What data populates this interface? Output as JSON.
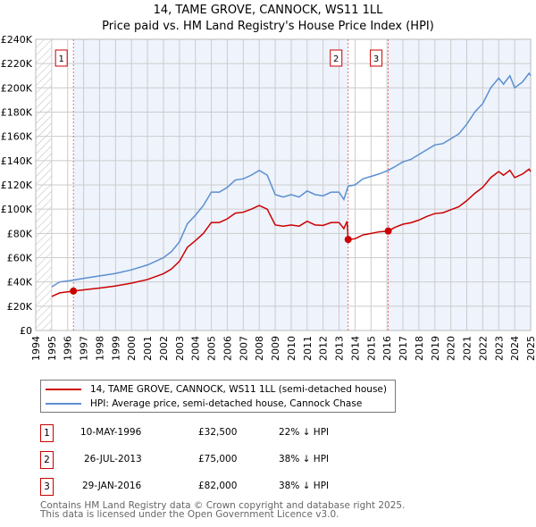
{
  "title": "14, TAME GROVE, CANNOCK, WS11 1LL",
  "subtitle": "Price paid vs. HM Land Registry's House Price Index (HPI)",
  "chart_data": {
    "type": "line",
    "title": "14, TAME GROVE, CANNOCK, WS11 1LL - Price paid vs. HM Land Registry's House Price Index (HPI)",
    "xlim": [
      1994,
      2025
    ],
    "ylim": [
      0,
      240000
    ],
    "x_ticks": [
      "1994",
      "1995",
      "1996",
      "1997",
      "1998",
      "1999",
      "2000",
      "2001",
      "2002",
      "2003",
      "2004",
      "2005",
      "2006",
      "2007",
      "2008",
      "2009",
      "2010",
      "2011",
      "2012",
      "2013",
      "2014",
      "2015",
      "2016",
      "2017",
      "2018",
      "2019",
      "2020",
      "2021",
      "2022",
      "2023",
      "2024",
      "2025"
    ],
    "y_ticks": [
      {
        "v": 0,
        "label": "£0"
      },
      {
        "v": 20000,
        "label": "£20K"
      },
      {
        "v": 40000,
        "label": "£40K"
      },
      {
        "v": 60000,
        "label": "£60K"
      },
      {
        "v": 80000,
        "label": "£80K"
      },
      {
        "v": 100000,
        "label": "£100K"
      },
      {
        "v": 120000,
        "label": "£120K"
      },
      {
        "v": 140000,
        "label": "£140K"
      },
      {
        "v": 160000,
        "label": "£160K"
      },
      {
        "v": 180000,
        "label": "£180K"
      },
      {
        "v": 200000,
        "label": "£200K"
      },
      {
        "v": 220000,
        "label": "£220K"
      },
      {
        "v": 240000,
        "label": "£240K"
      }
    ],
    "grid": true,
    "series": [
      {
        "name": "HPI: Average price, semi-detached house, Cannock Chase",
        "color": "#5b8fd0",
        "x": [
          1995,
          1995.5,
          1996.36,
          1997,
          1998,
          1999,
          2000,
          2001,
          2002,
          2002.5,
          2003,
          2003.5,
          2004,
          2004.5,
          2005,
          2005.5,
          2006,
          2006.5,
          2007,
          2007.5,
          2008,
          2008.5,
          2009,
          2009.5,
          2010,
          2010.5,
          2011,
          2011.5,
          2012,
          2012.5,
          2013,
          2013.3,
          2013.57,
          2014,
          2014.5,
          2015,
          2015.5,
          2016.08,
          2016.5,
          2017,
          2017.5,
          2018,
          2018.5,
          2019,
          2019.5,
          2020,
          2020.5,
          2021,
          2021.5,
          2022,
          2022.5,
          2023,
          2023.3,
          2023.7,
          2024,
          2024.5,
          2024.9,
          2025
        ],
        "y": [
          36000,
          40000,
          41500,
          43000,
          45000,
          47000,
          50000,
          54000,
          60000,
          65000,
          73000,
          88000,
          95000,
          103000,
          114000,
          114000,
          118000,
          124000,
          125000,
          128000,
          132000,
          128000,
          112000,
          110000,
          112000,
          110000,
          115000,
          112000,
          111000,
          114000,
          114000,
          108000,
          119000,
          120000,
          125000,
          127000,
          129000,
          132000,
          135000,
          139000,
          141000,
          145000,
          149000,
          153000,
          154000,
          158000,
          162000,
          170000,
          180000,
          187000,
          200000,
          208000,
          203000,
          210000,
          200000,
          205000,
          212000,
          210000
        ]
      },
      {
        "name": "14, TAME GROVE, CANNOCK, WS11 1LL (semi-detached house)",
        "color": "#cc0000",
        "x": [
          1995,
          1995.5,
          1996.36,
          1997,
          1998,
          1999,
          2000,
          2001,
          2002,
          2002.5,
          2003,
          2003.5,
          2004,
          2004.5,
          2005,
          2005.5,
          2006,
          2006.5,
          2007,
          2007.5,
          2008,
          2008.5,
          2009,
          2009.5,
          2010,
          2010.5,
          2011,
          2011.5,
          2012,
          2012.5,
          2013,
          2013.3,
          2013.5,
          2013.57,
          2014,
          2014.5,
          2015,
          2015.5,
          2016.08,
          2016.5,
          2017,
          2017.5,
          2018,
          2018.5,
          2019,
          2019.5,
          2020,
          2020.5,
          2021,
          2021.5,
          2022,
          2022.5,
          2023,
          2023.3,
          2023.7,
          2024,
          2024.5,
          2024.9,
          2025
        ],
        "y": [
          28000,
          31000,
          32500,
          33500,
          35000,
          36700,
          39000,
          42000,
          46800,
          50700,
          57000,
          68600,
          74000,
          80000,
          89000,
          89000,
          92000,
          96700,
          97500,
          100000,
          103000,
          100000,
          87000,
          86000,
          87000,
          86000,
          90000,
          87000,
          86600,
          89000,
          89000,
          84000,
          90000,
          75000,
          75600,
          78800,
          80000,
          81300,
          82000,
          85000,
          87600,
          88800,
          91000,
          94000,
          96400,
          97000,
          99500,
          102000,
          107000,
          113000,
          118000,
          126000,
          131000,
          128000,
          132000,
          126000,
          129000,
          133000,
          131000
        ]
      }
    ],
    "sales": [
      {
        "id": "1",
        "x": 1996.36,
        "date": "10-MAY-1996",
        "price": 32500,
        "price_label": "£32,500",
        "delta": "22% ↓ HPI"
      },
      {
        "id": "2",
        "x": 2013.57,
        "date": "26-JUL-2013",
        "price": 75000,
        "price_label": "£75,000",
        "delta": "38% ↓ HPI"
      },
      {
        "id": "3",
        "x": 2016.08,
        "date": "29-JAN-2016",
        "price": 82000,
        "price_label": "£82,000",
        "delta": "38% ↓ HPI"
      }
    ]
  },
  "legend": {
    "red": "14, TAME GROVE, CANNOCK, WS11 1LL (semi-detached house)",
    "blue": "HPI: Average price, semi-detached house, Cannock Chase"
  },
  "footer": [
    "Contains HM Land Registry data © Crown copyright and database right 2025.",
    "This data is licensed under the Open Government Licence v3.0."
  ]
}
